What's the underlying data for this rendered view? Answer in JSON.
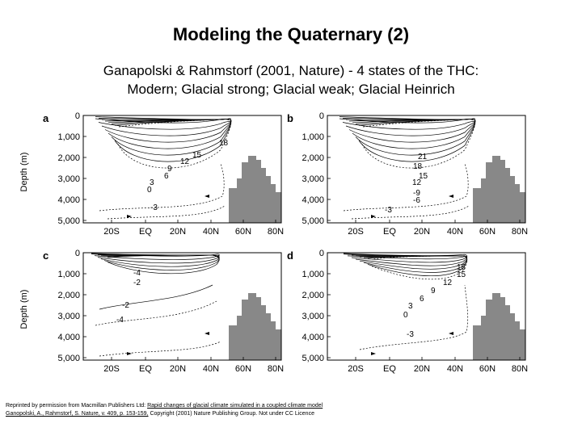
{
  "title": "Modeling the Quaternary (2)",
  "subtitle_line1": "Ganapolski & Rahmstorf (2001, Nature) - 4 states of the THC:",
  "subtitle_line2": "Modern; Glacial strong; Glacial weak; Glacial Heinrich",
  "ylabel": "Depth (m)",
  "y_ticks": [
    "0",
    "1,000",
    "2,000",
    "3,000",
    "4,000",
    "5,000"
  ],
  "x_ticks": [
    "20S",
    "EQ",
    "20N",
    "40N",
    "60N",
    "80N"
  ],
  "panels": [
    {
      "label": "a",
      "contour_labels": [
        "18",
        "15",
        "12",
        "9",
        "6",
        "3",
        "0",
        "-3"
      ]
    },
    {
      "label": "b",
      "contour_labels": [
        "21",
        "18",
        "15",
        "12",
        "-9",
        "-6",
        "-3"
      ]
    },
    {
      "label": "c",
      "contour_labels": [
        "-4",
        "-2",
        "-2",
        "-4"
      ]
    },
    {
      "label": "d",
      "contour_labels": [
        "18",
        "15",
        "12",
        "9",
        "6",
        "3",
        "0",
        "-3"
      ]
    }
  ],
  "credit": {
    "prefix": "Reprinted by permission from Macmillan Publishers Ltd: ",
    "link_line1": "Rapid changes of glacial climate simulated in a coupled climate model",
    "link_line2": "Ganopolski, A., Rahmstorf, S. Nature, v. 409, p. 153-159,",
    "suffix": " Copyright (2001) Nature Publishing Group. Not under CC Licence"
  }
}
